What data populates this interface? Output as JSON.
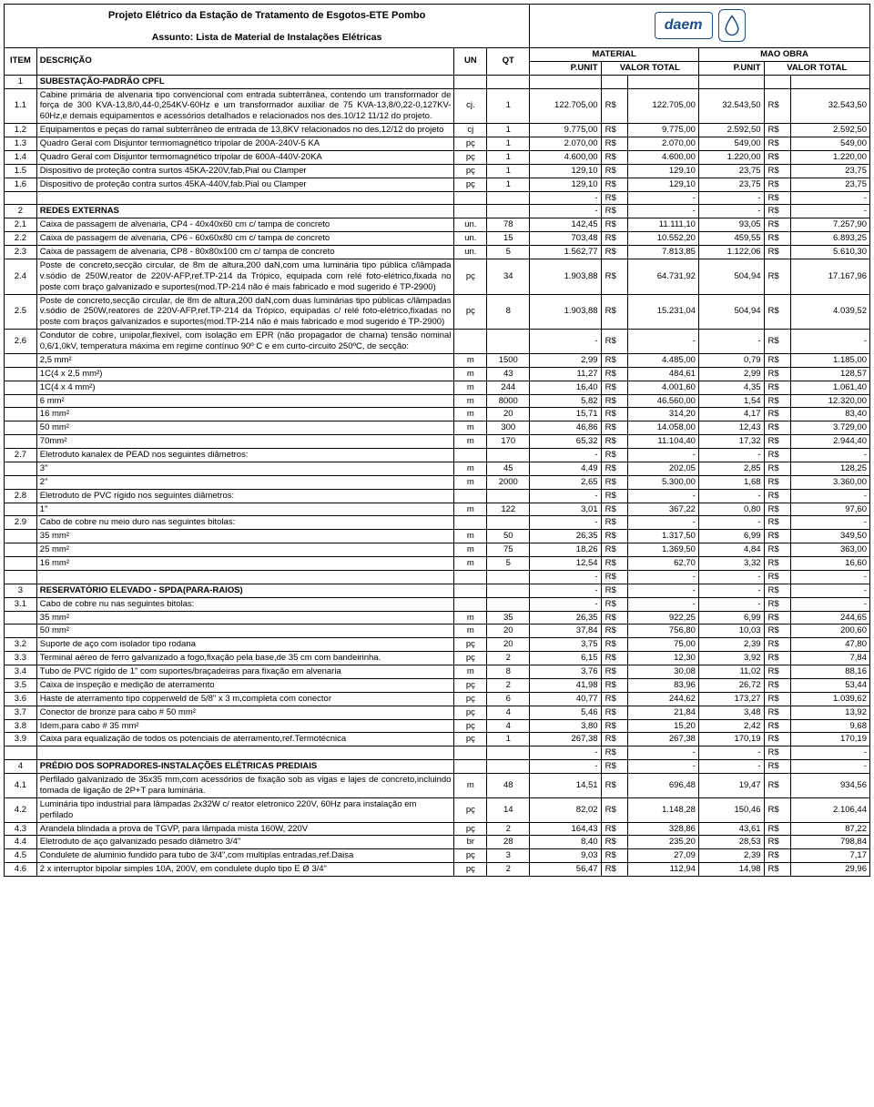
{
  "header": {
    "title": "Projeto Elétrico da Estação de Tratamento de Esgotos-ETE Pombo",
    "subject": "Assunto: Lista de Material de Instalações Elétricas",
    "logo_text": "daem"
  },
  "columns": {
    "item": "ITEM",
    "desc": "DESCRIÇÃO",
    "un": "UN",
    "qt": "QT",
    "material": "MATERIAL",
    "mao_obra": "MAO OBRA",
    "punit": "P.UNIT",
    "vtotal": "VALOR TOTAL"
  },
  "currency": "R$",
  "dash": "-",
  "rows": [
    {
      "item": "1",
      "desc": "SUBESTAÇÃO-PADRÃO CPFL",
      "un": "",
      "qt": "",
      "mpu": "",
      "mvt": "",
      "opu": "",
      "ovt": "",
      "section": true
    },
    {
      "item": "1.1",
      "desc": "Cabine primária de alvenaria tipo convencional com entrada subterrânea, contendo um transformador de força de 300 KVA-13,8/0,44-0,254KV-60Hz e um transformador auxiliar de 75 KVA-13,8/0,22-0,127KV-60Hz,e demais equipamentos e acessórios detalhados e relacionados nos des.10/12 11/12 do projeto.",
      "un": "cj.",
      "qt": "1",
      "mpu": "122.705,00",
      "mvt": "122.705,00",
      "opu": "32.543,50",
      "ovt": "32.543,50",
      "justify": true
    },
    {
      "item": "1.2",
      "desc": "Equipamentos e peças do ramal subterrâneo de entrada de 13,8KV relacionados no des.12/12 do projeto",
      "un": "cj",
      "qt": "1",
      "mpu": "9.775,00",
      "mvt": "9.775,00",
      "opu": "2.592,50",
      "ovt": "2.592,50"
    },
    {
      "item": "1.3",
      "desc": "Quadro Geral com Disjuntor termomagnético tripolar de 200A-240V-5 KA",
      "un": "pç",
      "qt": "1",
      "mpu": "2.070,00",
      "mvt": "2.070,00",
      "opu": "549,00",
      "ovt": "549,00"
    },
    {
      "item": "1.4",
      "desc": "Quadro Geral com Disjuntor termomagnético tripolar de 600A-440V-20KA",
      "un": "pç",
      "qt": "1",
      "mpu": "4.600,00",
      "mvt": "4.600,00",
      "opu": "1.220,00",
      "ovt": "1.220,00"
    },
    {
      "item": "1.5",
      "desc": "Dispositivo de proteção contra surtos 45KA-220V,fab,Pial ou Clamper",
      "un": "pç",
      "qt": "1",
      "mpu": "129,10",
      "mvt": "129,10",
      "opu": "23,75",
      "ovt": "23,75"
    },
    {
      "item": "1.6",
      "desc": "Dispositivo de proteção contra surtos 45KA-440V,fab.Pial ou Clamper",
      "un": "pç",
      "qt": "1",
      "mpu": "129,10",
      "mvt": "129,10",
      "opu": "23,75",
      "ovt": "23,75"
    },
    {
      "item": "",
      "desc": "",
      "un": "",
      "qt": "",
      "mpu": "-",
      "mvt": "-",
      "opu": "-",
      "ovt": "-",
      "blank": true
    },
    {
      "item": "2",
      "desc": "REDES EXTERNAS",
      "un": "",
      "qt": "",
      "mpu": "-",
      "mvt": "-",
      "opu": "-",
      "ovt": "-",
      "section": true
    },
    {
      "item": "2.1",
      "desc": "Caixa de passagem de alvenaria, CP4 - 40x40x60 cm c/ tampa de concreto",
      "un": "un.",
      "qt": "78",
      "mpu": "142,45",
      "mvt": "11.111,10",
      "opu": "93,05",
      "ovt": "7.257,90"
    },
    {
      "item": "2.2",
      "desc": "Caixa de passagem de alvenaria, CP6 - 60x60x80 cm c/ tampa de concreto",
      "un": "un.",
      "qt": "15",
      "mpu": "703,48",
      "mvt": "10.552,20",
      "opu": "459,55",
      "ovt": "6.893,25"
    },
    {
      "item": "2.3",
      "desc": "Caixa de passagem de alvenaria, CP8 - 80x80x100 cm c/ tampa de concreto",
      "un": "un.",
      "qt": "5",
      "mpu": "1.562,77",
      "mvt": "7.813,85",
      "opu": "1.122,06",
      "ovt": "5.610,30"
    },
    {
      "item": "2.4",
      "desc": "Poste de concreto,secção circular, de 8m de altura,200 daN,com uma luminária tipo pública c/lâmpada v.sódio de 250W,reator de 220V-AFP,ref.TP-214 da Trópico, equipada com relé foto-elétrico,fixada no poste com braço galvanizado e suportes(mod.TP-214 não é mais fabricado e mod sugerido é TP-2900)",
      "un": "pç",
      "qt": "34",
      "mpu": "1.903,88",
      "mvt": "64.731,92",
      "opu": "504,94",
      "ovt": "17.167,96",
      "justify": true
    },
    {
      "item": "2.5",
      "desc": "Poste de concreto,secção circular, de 8m de altura,200 daN,com duas luminárias tipo públicas c/lâmpadas v.sódio de 250W,reatores de 220V-AFP,ref.TP-214 da Trópico, equipadas c/ relé foto-elétrico,fixadas no poste com braços galvanizados e suportes(mod.TP-214 não é mais fabricado e mod sugerido é TP-2900)",
      "un": "pç",
      "qt": "8",
      "mpu": "1.903,88",
      "mvt": "15.231,04",
      "opu": "504,94",
      "ovt": "4.039,52",
      "justify": true
    },
    {
      "item": "2.6",
      "desc": "Condutor de cobre, unipolar,flexível, com isolação em EPR (não propagador de chama) tensão nominal 0,6/1,0kV, temperatura máxima em regime contínuo 90º C e em curto-circuito 250ºC, de secção:",
      "un": "",
      "qt": "",
      "mpu": "-",
      "mvt": "-",
      "opu": "-",
      "ovt": "-",
      "justify": true
    },
    {
      "item": "",
      "desc": "2,5 mm²",
      "un": "m",
      "qt": "1500",
      "mpu": "2,99",
      "mvt": "4.485,00",
      "opu": "0,79",
      "ovt": "1.185,00"
    },
    {
      "item": "",
      "desc": "1C(4 x 2,5 mm²)",
      "un": "m",
      "qt": "43",
      "mpu": "11,27",
      "mvt": "484,61",
      "opu": "2,99",
      "ovt": "128,57"
    },
    {
      "item": "",
      "desc": "1C(4 x 4 mm²)",
      "un": "m",
      "qt": "244",
      "mpu": "16,40",
      "mvt": "4.001,60",
      "opu": "4,35",
      "ovt": "1.061,40"
    },
    {
      "item": "",
      "desc": "6 mm²",
      "un": "m",
      "qt": "8000",
      "mpu": "5,82",
      "mvt": "46.560,00",
      "opu": "1,54",
      "ovt": "12.320,00"
    },
    {
      "item": "",
      "desc": "16 mm²",
      "un": "m",
      "qt": "20",
      "mpu": "15,71",
      "mvt": "314,20",
      "opu": "4,17",
      "ovt": "83,40"
    },
    {
      "item": "",
      "desc": "50 mm²",
      "un": "m",
      "qt": "300",
      "mpu": "46,86",
      "mvt": "14.058,00",
      "opu": "12,43",
      "ovt": "3.729,00"
    },
    {
      "item": "",
      "desc": "70mm²",
      "un": "m",
      "qt": "170",
      "mpu": "65,32",
      "mvt": "11.104,40",
      "opu": "17,32",
      "ovt": "2.944,40"
    },
    {
      "item": "2.7",
      "desc": "Eletroduto kanalex de PEAD nos seguintes diâmetros:",
      "un": "",
      "qt": "",
      "mpu": "-",
      "mvt": "-",
      "opu": "-",
      "ovt": "-"
    },
    {
      "item": "",
      "desc": "3\"",
      "un": "m",
      "qt": "45",
      "mpu": "4,49",
      "mvt": "202,05",
      "opu": "2,85",
      "ovt": "128,25"
    },
    {
      "item": "",
      "desc": "2\"",
      "un": "m",
      "qt": "2000",
      "mpu": "2,65",
      "mvt": "5.300,00",
      "opu": "1,68",
      "ovt": "3.360,00"
    },
    {
      "item": "2.8",
      "desc": "Eletroduto de PVC rígido nos seguintes diâmetros:",
      "un": "",
      "qt": "",
      "mpu": "-",
      "mvt": "-",
      "opu": "-",
      "ovt": "-"
    },
    {
      "item": "",
      "desc": "1\"",
      "un": "m",
      "qt": "122",
      "mpu": "3,01",
      "mvt": "367,22",
      "opu": "0,80",
      "ovt": "97,60"
    },
    {
      "item": "2.9",
      "desc": "Cabo de cobre nu meio duro nas seguintes bitolas:",
      "un": "",
      "qt": "",
      "mpu": "-",
      "mvt": "-",
      "opu": "-",
      "ovt": "-"
    },
    {
      "item": "",
      "desc": "35 mm²",
      "un": "m",
      "qt": "50",
      "mpu": "26,35",
      "mvt": "1.317,50",
      "opu": "6,99",
      "ovt": "349,50"
    },
    {
      "item": "",
      "desc": "25 mm²",
      "un": "m",
      "qt": "75",
      "mpu": "18,26",
      "mvt": "1.369,50",
      "opu": "4,84",
      "ovt": "363,00"
    },
    {
      "item": "",
      "desc": "16 mm²",
      "un": "m",
      "qt": "5",
      "mpu": "12,54",
      "mvt": "62,70",
      "opu": "3,32",
      "ovt": "16,60"
    },
    {
      "item": "",
      "desc": "",
      "un": "",
      "qt": "",
      "mpu": "-",
      "mvt": "-",
      "opu": "-",
      "ovt": "-",
      "blank": true
    },
    {
      "item": "3",
      "desc": "RESERVATÓRIO ELEVADO - SPDA(PARA-RAIOS)",
      "un": "",
      "qt": "",
      "mpu": "-",
      "mvt": "-",
      "opu": "-",
      "ovt": "-",
      "section": true
    },
    {
      "item": "3.1",
      "desc": "Cabo de cobre nu nas seguintes bitolas:",
      "un": "",
      "qt": "",
      "mpu": "-",
      "mvt": "-",
      "opu": "-",
      "ovt": "-"
    },
    {
      "item": "",
      "desc": "35 mm²",
      "un": "m",
      "qt": "35",
      "mpu": "26,35",
      "mvt": "922,25",
      "opu": "6,99",
      "ovt": "244,65"
    },
    {
      "item": "",
      "desc": "50 mm²",
      "un": "m",
      "qt": "20",
      "mpu": "37,84",
      "mvt": "756,80",
      "opu": "10,03",
      "ovt": "200,60"
    },
    {
      "item": "3.2",
      "desc": "Suporte de aço com isolador tipo rodana",
      "un": "pç",
      "qt": "20",
      "mpu": "3,75",
      "mvt": "75,00",
      "opu": "2,39",
      "ovt": "47,80"
    },
    {
      "item": "3.3",
      "desc": "Terminal aéreo de ferro galvanizado a fogo,fixação pela base,de 35 cm com bandeirinha.",
      "un": "pç",
      "qt": "2",
      "mpu": "6,15",
      "mvt": "12,30",
      "opu": "3,92",
      "ovt": "7,84"
    },
    {
      "item": "3.4",
      "desc": "Tubo de PVC rígido de 1\" com suportes/braçadeiras para fixação em alvenaria",
      "un": "m",
      "qt": "8",
      "mpu": "3,76",
      "mvt": "30,08",
      "opu": "11,02",
      "ovt": "88,16"
    },
    {
      "item": "3.5",
      "desc": "Caixa de inspeção e medição de aterramento",
      "un": "pç",
      "qt": "2",
      "mpu": "41,98",
      "mvt": "83,96",
      "opu": "26,72",
      "ovt": "53,44"
    },
    {
      "item": "3.6",
      "desc": "Haste de aterramento tipo copperweld de 5/8\" x 3 m,completa com conector",
      "un": "pç",
      "qt": "6",
      "mpu": "40,77",
      "mvt": "244,62",
      "opu": "173,27",
      "ovt": "1.039,62"
    },
    {
      "item": "3.7",
      "desc": "Conector de bronze para cabo # 50 mm²",
      "un": "pç",
      "qt": "4",
      "mpu": "5,46",
      "mvt": "21,84",
      "opu": "3,48",
      "ovt": "13,92"
    },
    {
      "item": "3.8",
      "desc": "Idem,para cabo # 35 mm²",
      "un": "pç",
      "qt": "4",
      "mpu": "3,80",
      "mvt": "15,20",
      "opu": "2,42",
      "ovt": "9,68"
    },
    {
      "item": "3.9",
      "desc": "Caixa para equalização de todos os potenciais de aterramento,ref.Termotécnica",
      "un": "pç",
      "qt": "1",
      "mpu": "267,38",
      "mvt": "267,38",
      "opu": "170,19",
      "ovt": "170,19"
    },
    {
      "item": "",
      "desc": "",
      "un": "",
      "qt": "",
      "mpu": "-",
      "mvt": "-",
      "opu": "-",
      "ovt": "-",
      "blank": true
    },
    {
      "item": "4",
      "desc": "PRÉDIO DOS SOPRADORES-INSTALAÇÕES ELÉTRICAS PREDIAIS",
      "un": "",
      "qt": "",
      "mpu": "-",
      "mvt": "-",
      "opu": "-",
      "ovt": "-",
      "section": true
    },
    {
      "item": "4.1",
      "desc": "Perfilado galvanizado de 35x35 mm,com acessórios de fixação sob as vigas e lajes de concreto,incluindo tomada de ligação de 2P+T para luminária.",
      "un": "m",
      "qt": "48",
      "mpu": "14,51",
      "mvt": "696,48",
      "opu": "19,47",
      "ovt": "934,56",
      "justify": true
    },
    {
      "item": "4.2",
      "desc": "Luminária tipo industrial para lâmpadas 2x32W c/ reator eletronico 220V, 60Hz para instalação em perfilado",
      "un": "pç",
      "qt": "14",
      "mpu": "82,02",
      "mvt": "1.148,28",
      "opu": "150,46",
      "ovt": "2.106,44"
    },
    {
      "item": "4.3",
      "desc": "Arandela blindada a prova de TGVP, para lâmpada mista 160W, 220V",
      "un": "pç",
      "qt": "2",
      "mpu": "164,43",
      "mvt": "328,86",
      "opu": "43,61",
      "ovt": "87,22"
    },
    {
      "item": "4.4",
      "desc": "Eletroduto de aço galvanizado pesado diâmetro 3/4\"",
      "un": "br",
      "qt": "28",
      "mpu": "8,40",
      "mvt": "235,20",
      "opu": "28,53",
      "ovt": "798,84"
    },
    {
      "item": "4.5",
      "desc": "Condulete de aluminio fundido para tubo de 3/4\",com multiplas entradas,ref.Daisa",
      "un": "pç",
      "qt": "3",
      "mpu": "9,03",
      "mvt": "27,09",
      "opu": "2,39",
      "ovt": "7,17"
    },
    {
      "item": "4.6",
      "desc": " 2 x interruptor bipolar simples 10A, 200V, em condulete duplo tipo E Ø 3/4\"",
      "un": "pç",
      "qt": "2",
      "mpu": "56,47",
      "mvt": "112,94",
      "opu": "14,98",
      "ovt": "29,96"
    }
  ]
}
